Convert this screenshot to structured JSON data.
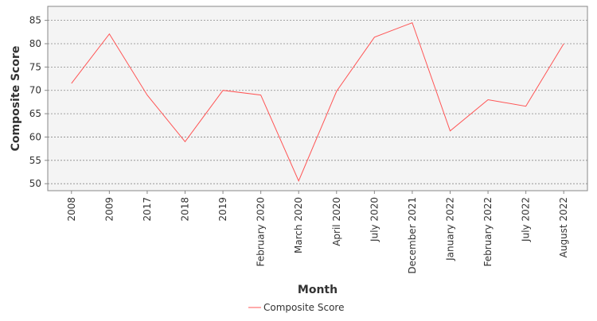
{
  "chart_data": {
    "type": "line",
    "title": "",
    "xlabel": "Month",
    "ylabel": "Composite Score",
    "categories": [
      "2008",
      "2009",
      "2017",
      "2018",
      "2019",
      "February 2020",
      "March 2020",
      "April 2020",
      "July 2020",
      "December 2021",
      "January 2022",
      "February 2022",
      "July 2022",
      "August 2022"
    ],
    "series": [
      {
        "name": "Composite Score",
        "values": [
          71.5,
          82.1,
          69.0,
          59.0,
          70.0,
          69.0,
          50.6,
          69.8,
          81.4,
          84.5,
          61.3,
          68.0,
          66.6,
          80.0
        ],
        "color": "#ff5555"
      }
    ],
    "ylim": [
      48.5,
      88
    ],
    "yticks": [
      50,
      55,
      60,
      65,
      70,
      75,
      80,
      85
    ],
    "grid": true,
    "legend_position": "bottom-center",
    "colors": {
      "plot_background": "#f4f4f4",
      "grid": "#888888",
      "axis": "#888888"
    }
  }
}
